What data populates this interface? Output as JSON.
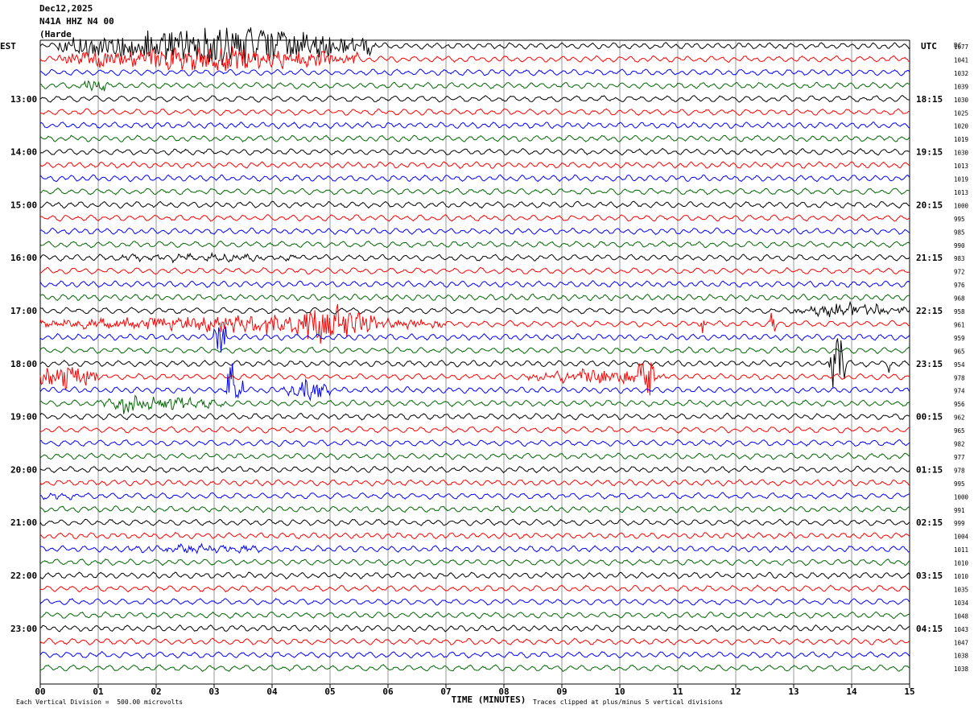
{
  "header": {
    "date": "Dec12,2025",
    "station": "N41A HHZ N4 00",
    "location": "(Harde"
  },
  "chart_data": {
    "type": "line",
    "title": "",
    "xlabel": "TIME (MINUTES)",
    "left_axis_label": "EST",
    "right_axis_label": "UTC",
    "dc_header": "DC",
    "x_ticks": [
      "00",
      "01",
      "02",
      "03",
      "04",
      "05",
      "06",
      "07",
      "08",
      "09",
      "10",
      "11",
      "12",
      "13",
      "14",
      "15"
    ],
    "xlim": [
      0,
      15
    ],
    "n_rows": 48,
    "row_minutes": 15,
    "left_hour_labels": [
      "13:00",
      "14:00",
      "15:00",
      "16:00",
      "17:00",
      "18:00",
      "19:00",
      "20:00",
      "21:00",
      "22:00",
      "23:00"
    ],
    "right_hour_labels": [
      "18:15",
      "19:15",
      "20:15",
      "21:15",
      "22:15",
      "23:15",
      "00:15",
      "01:15",
      "02:15",
      "03:15",
      "04:15"
    ],
    "hour_label_first_row": 4,
    "hour_label_step": 4,
    "trace_colors": [
      "#000000",
      "#ff0000",
      "#0000ff",
      "#006600"
    ],
    "dc_values": [
      "1077",
      "1041",
      "1032",
      "1039",
      "1030",
      "1025",
      "1020",
      "1019",
      "1030",
      "1013",
      "1019",
      "1013",
      "1000",
      "995",
      "985",
      "990",
      "983",
      "972",
      "976",
      "968",
      "958",
      "961",
      "959",
      "965",
      "954",
      "978",
      "974",
      "956",
      "962",
      "965",
      "982",
      "977",
      "978",
      "995",
      "1000",
      "991",
      "999",
      "1004",
      "1011",
      "1010",
      "1010",
      "1035",
      "1034",
      "1048",
      "1043",
      "1047",
      "1038",
      "1038"
    ],
    "events": [
      {
        "row": 0,
        "start_min": 0.3,
        "end_min": 5.8,
        "amp": 2.6
      },
      {
        "row": 1,
        "start_min": 0.3,
        "end_min": 5.5,
        "amp": 1.6
      },
      {
        "row": 3,
        "start_min": 0.6,
        "end_min": 1.2,
        "amp": 0.8
      },
      {
        "row": 16,
        "start_min": 1.0,
        "end_min": 5.0,
        "amp": 0.3
      },
      {
        "row": 20,
        "start_min": 13.0,
        "end_min": 15.0,
        "amp": 0.9
      },
      {
        "row": 21,
        "start_min": 0.0,
        "end_min": 7.0,
        "amp": 1.0
      },
      {
        "row": 21,
        "start_min": 3.9,
        "end_min": 5.8,
        "amp": 2.4
      },
      {
        "row": 21,
        "start_min": 11.4,
        "end_min": 11.5,
        "amp": 1.8
      },
      {
        "row": 21,
        "start_min": 12.6,
        "end_min": 12.7,
        "amp": 3.2
      },
      {
        "row": 22,
        "start_min": 3.0,
        "end_min": 3.2,
        "amp": 3.5
      },
      {
        "row": 24,
        "start_min": 13.6,
        "end_min": 13.9,
        "amp": 4.5
      },
      {
        "row": 24,
        "start_min": 14.6,
        "end_min": 14.7,
        "amp": 1.2
      },
      {
        "row": 25,
        "start_min": 0.0,
        "end_min": 1.0,
        "amp": 1.8
      },
      {
        "row": 25,
        "start_min": 8.4,
        "end_min": 10.8,
        "amp": 0.9
      },
      {
        "row": 25,
        "start_min": 10.3,
        "end_min": 10.6,
        "amp": 3.5
      },
      {
        "row": 26,
        "start_min": 3.2,
        "end_min": 3.5,
        "amp": 4.5
      },
      {
        "row": 26,
        "start_min": 4.2,
        "end_min": 5.0,
        "amp": 1.6
      },
      {
        "row": 27,
        "start_min": 1.0,
        "end_min": 3.2,
        "amp": 0.8
      },
      {
        "row": 27,
        "start_min": 1.4,
        "end_min": 1.7,
        "amp": 2.0
      },
      {
        "row": 34,
        "start_min": 0.0,
        "end_min": 0.6,
        "amp": 0.3
      },
      {
        "row": 38,
        "start_min": 1.5,
        "end_min": 3.8,
        "amp": 0.4
      }
    ]
  },
  "footer": {
    "scale_note": "Each Vertical Division =  500.00 microvolts",
    "clip_note": "Traces clipped at plus/minus 5 vertical divisions"
  }
}
